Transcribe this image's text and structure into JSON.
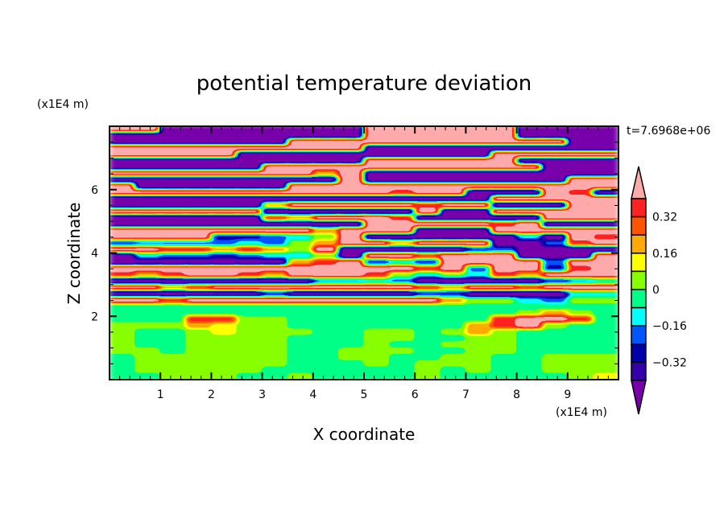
{
  "chart_data": {
    "type": "heatmap",
    "title": "potential temperature deviation",
    "xlabel": "X coordinate",
    "ylabel": "Z coordinate",
    "x_unit_label": "(x1E4 m)",
    "y_unit_label": "(x1E4 m)",
    "time_label": "t=7.6968e+06",
    "xlim": [
      0,
      10
    ],
    "ylim": [
      0,
      8
    ],
    "x_ticks": [
      1,
      2,
      3,
      4,
      5,
      6,
      7,
      8,
      9
    ],
    "y_ticks": [
      2,
      4,
      6
    ],
    "grid": false,
    "colorbar": {
      "levels": [
        -0.4,
        -0.32,
        -0.24,
        -0.16,
        -0.08,
        0,
        0.08,
        0.16,
        0.24,
        0.32,
        0.4
      ],
      "tick_labels": [
        {
          "value": 0.32,
          "label": "0.32"
        },
        {
          "value": 0.16,
          "label": "0.16"
        },
        {
          "value": 0,
          "label": "0"
        },
        {
          "value": -0.16,
          "label": "−0.16"
        },
        {
          "value": -0.32,
          "label": "−0.32"
        }
      ],
      "colors": [
        "#7700aa",
        "#3300aa",
        "#0000aa",
        "#0055ff",
        "#00ffff",
        "#00ff88",
        "#88ff00",
        "#ffff00",
        "#ffaa00",
        "#ff5500",
        "#ff2222",
        "#ffaaaa"
      ],
      "extend": "both",
      "placement": "right"
    },
    "grid_dx": 0.5,
    "grid_dz": 0.2,
    "values_top_to_bottom": [
      [
        0.5,
        0.5,
        -0.5,
        -0.5,
        -0.5,
        -0.5,
        -0.5,
        -0.5,
        -0.5,
        -0.5,
        0.5,
        0.5,
        0.5,
        0.5,
        0.5,
        0.5,
        -0.5,
        -0.5,
        -0.5,
        -0.5
      ],
      [
        -0.5,
        -0.5,
        -0.5,
        -0.5,
        -0.5,
        -0.5,
        -0.5,
        -0.5,
        -0.5,
        -0.5,
        0.5,
        0.5,
        0.5,
        0.5,
        0.5,
        0.5,
        -0.5,
        -0.5,
        -0.5,
        -0.5
      ],
      [
        -0.5,
        -0.5,
        -0.5,
        -0.5,
        -0.5,
        -0.5,
        -0.5,
        0.5,
        0.5,
        0.5,
        0.5,
        0.5,
        0.5,
        0.5,
        0.5,
        0.5,
        0.5,
        0.5,
        -0.5,
        -0.5
      ],
      [
        0.5,
        0.5,
        0.5,
        0.5,
        0.5,
        0.5,
        0.5,
        0.5,
        0.5,
        0.5,
        -0.5,
        -0.5,
        -0.5,
        -0.5,
        -0.5,
        -0.5,
        -0.5,
        -0.5,
        -0.5,
        -0.5
      ],
      [
        0.5,
        0.5,
        0.5,
        0.5,
        0.5,
        -0.5,
        -0.5,
        -0.5,
        -0.5,
        -0.5,
        -0.5,
        -0.5,
        -0.5,
        -0.5,
        -0.5,
        0.5,
        0.5,
        0.5,
        0.5,
        0.5
      ],
      [
        -0.5,
        -0.5,
        -0.5,
        -0.5,
        -0.5,
        -0.5,
        -0.5,
        -0.5,
        -0.5,
        -0.5,
        0.5,
        0.5,
        0.5,
        0.5,
        0.5,
        0.5,
        -0.5,
        -0.5,
        -0.5,
        -0.5
      ],
      [
        -0.5,
        -0.5,
        -0.5,
        -0.5,
        -0.5,
        -0.5,
        0.5,
        0.5,
        0.5,
        0.5,
        0.5,
        0.5,
        0.5,
        0.5,
        0.5,
        0.5,
        0.5,
        -0.5,
        -0.5,
        -0.5
      ],
      [
        0.5,
        0.5,
        0.5,
        0.5,
        0.5,
        0.5,
        0.5,
        0.5,
        0.2,
        0.5,
        -0.5,
        -0.5,
        -0.5,
        -0.5,
        -0.5,
        -0.5,
        -0.5,
        -0.5,
        -0.5,
        -0.5
      ],
      [
        -0.5,
        -0.5,
        -0.5,
        -0.5,
        -0.5,
        -0.5,
        -0.5,
        -0.5,
        -0.5,
        0.5,
        -0.5,
        -0.5,
        -0.5,
        -0.5,
        -0.5,
        -0.5,
        -0.5,
        -0.5,
        0.5,
        0.5
      ],
      [
        0.5,
        -0.5,
        -0.5,
        -0.5,
        -0.5,
        -0.5,
        -0.5,
        0.5,
        0.5,
        0.5,
        0.5,
        0.5,
        0.5,
        0.5,
        0.5,
        0.5,
        0.5,
        0.5,
        0.5,
        0.5
      ],
      [
        0.5,
        0.5,
        0.5,
        0.5,
        0.5,
        0.5,
        0.5,
        0.5,
        0.5,
        0.5,
        0.5,
        0.36,
        0.5,
        0.5,
        -0.5,
        -0.5,
        -0.5,
        0.5,
        0.36,
        -0.5
      ],
      [
        -0.5,
        -0.5,
        -0.5,
        -0.5,
        -0.5,
        -0.5,
        -0.5,
        -0.5,
        -0.5,
        -0.5,
        -0.5,
        -0.5,
        -0.5,
        -0.5,
        -0.5,
        0.5,
        0.5,
        0.5,
        0.5,
        0.5
      ],
      [
        -0.5,
        -0.5,
        -0.5,
        -0.5,
        -0.5,
        -0.5,
        0.2,
        0.5,
        0.5,
        0.5,
        0.5,
        0.5,
        0.36,
        0.5,
        0.5,
        -0.5,
        -0.5,
        -0.5,
        0.5,
        0.5
      ],
      [
        0.5,
        0.5,
        0.5,
        0.5,
        0.5,
        0.5,
        -0.5,
        -0.5,
        -0.5,
        -0.5,
        -0.5,
        -0.5,
        0.5,
        -0.5,
        -0.5,
        0.5,
        0.5,
        0.5,
        0.5,
        0.5
      ],
      [
        -0.5,
        -0.5,
        -0.5,
        -0.5,
        -0.5,
        -0.5,
        0.36,
        0.2,
        0.5,
        0.5,
        0.5,
        0.36,
        -0.5,
        -0.5,
        -0.5,
        -0.5,
        -0.5,
        0.5,
        0.5,
        0.5
      ],
      [
        -0.5,
        -0.5,
        -0.5,
        -0.5,
        -0.5,
        -0.5,
        -0.5,
        -0.5,
        -0.5,
        -0.5,
        0.5,
        0.5,
        0.5,
        0.5,
        0.5,
        0.36,
        0.5,
        -0.5,
        -0.5,
        -0.5
      ],
      [
        0.5,
        0.5,
        0.5,
        0.5,
        0.5,
        0.5,
        0.5,
        0.5,
        0.2,
        0.5,
        0.5,
        0.5,
        -0.5,
        -0.5,
        -0.5,
        0.5,
        0.5,
        0.5,
        0.5,
        0.5
      ],
      [
        0.5,
        0.5,
        0.5,
        0.5,
        -0.28,
        -0.28,
        -0.2,
        -0.12,
        0.04,
        0.5,
        -0.5,
        -0.5,
        -0.5,
        -0.5,
        -0.5,
        -0.5,
        -0.12,
        -0.5,
        0.5,
        0.36
      ],
      [
        -0.28,
        -0.2,
        -0.2,
        -0.2,
        -0.2,
        -0.12,
        -0.2,
        0.04,
        0.2,
        0.5,
        0.5,
        0.2,
        0.5,
        0.5,
        0.5,
        -0.5,
        -0.5,
        -0.2,
        0.36,
        0.5
      ],
      [
        0.5,
        0.5,
        0.36,
        0.36,
        0.2,
        0.36,
        0.2,
        0.04,
        0.5,
        -0.5,
        -0.5,
        -0.5,
        -0.5,
        -0.5,
        -0.28,
        -0.2,
        -0.5,
        -0.5,
        -0.5,
        -0.5
      ],
      [
        -0.5,
        -0.12,
        -0.2,
        -0.2,
        -0.28,
        -0.2,
        -0.12,
        -0.12,
        0.04,
        -0.5,
        0.5,
        0.5,
        0.36,
        0.5,
        0.5,
        0.5,
        -0.5,
        -0.5,
        -0.5,
        0.5
      ],
      [
        -0.5,
        -0.5,
        -0.5,
        -0.5,
        -0.5,
        -0.5,
        -0.5,
        0.2,
        0.36,
        0.5,
        -0.28,
        -0.12,
        -0.28,
        0.5,
        0.5,
        0.5,
        0.5,
        -0.2,
        0.5,
        0.5
      ],
      [
        0.5,
        0.5,
        0.5,
        0.5,
        0.5,
        0.5,
        0.5,
        0.5,
        0.5,
        0.5,
        0.5,
        0.5,
        0.36,
        0.5,
        -0.2,
        0.5,
        0.5,
        -0.28,
        0.36,
        0.5
      ],
      [
        0.36,
        0.2,
        0.36,
        0.5,
        0.5,
        0.36,
        0.2,
        0.5,
        0.5,
        0.5,
        0.36,
        0.04,
        -0.12,
        0.04,
        -0.12,
        0.36,
        0.2,
        0.5,
        0.5,
        0.5
      ],
      [
        -0.5,
        -0.5,
        -0.5,
        -0.5,
        -0.5,
        -0.5,
        -0.5,
        -0.5,
        -0.2,
        -0.2,
        -0.12,
        -0.2,
        -0.5,
        -0.5,
        -0.5,
        -0.5,
        -0.5,
        -0.28,
        -0.2,
        -0.12
      ],
      [
        0.5,
        0.5,
        0.2,
        0.36,
        0.5,
        0.5,
        0.5,
        0.5,
        0.5,
        0.5,
        0.5,
        0.5,
        0.36,
        0.2,
        0.5,
        0.5,
        0.36,
        0.5,
        0.5,
        0.5
      ],
      [
        -0.5,
        -0.5,
        -0.5,
        -0.5,
        -0.5,
        -0.5,
        -0.28,
        -0.5,
        -0.5,
        -0.5,
        -0.5,
        -0.5,
        -0.28,
        -0.28,
        -0.5,
        -0.5,
        -0.5,
        -0.5,
        -0.12,
        -0.12
      ],
      [
        0.5,
        0.5,
        0.36,
        0.5,
        0.5,
        0.5,
        0.5,
        0.5,
        0.5,
        0.5,
        0.5,
        0.5,
        0.5,
        0.2,
        0.04,
        0.04,
        -0.12,
        -0.2,
        0.04,
        0.04
      ],
      [
        -0.04,
        -0.04,
        -0.04,
        -0.04,
        -0.04,
        -0.04,
        -0.04,
        -0.04,
        -0.04,
        -0.04,
        -0.04,
        -0.04,
        -0.04,
        -0.04,
        -0.04,
        -0.04,
        -0.04,
        -0.04,
        -0.04,
        -0.04
      ],
      [
        -0.04,
        -0.04,
        -0.04,
        -0.04,
        -0.04,
        -0.04,
        -0.04,
        -0.04,
        -0.04,
        -0.04,
        -0.04,
        -0.04,
        -0.04,
        -0.04,
        -0.04,
        -0.04,
        0.04,
        0.2,
        0.04,
        -0.04
      ],
      [
        -0.04,
        -0.04,
        -0.04,
        0.36,
        0.36,
        0.04,
        0.04,
        -0.04,
        -0.04,
        -0.04,
        -0.04,
        -0.04,
        -0.04,
        -0.04,
        -0.04,
        0.36,
        0.5,
        0.5,
        0.36,
        -0.04
      ],
      [
        0.04,
        0.04,
        0.04,
        0.2,
        0.12,
        0.04,
        0.04,
        -0.04,
        -0.04,
        -0.04,
        -0.04,
        -0.04,
        -0.04,
        -0.04,
        0.2,
        0.36,
        0.5,
        0.04,
        -0.04,
        -0.04
      ],
      [
        0.04,
        -0.04,
        -0.04,
        0.04,
        0.12,
        0.04,
        0.04,
        0.04,
        -0.04,
        -0.04,
        0.04,
        0.04,
        -0.04,
        0.04,
        0.2,
        0.04,
        -0.04,
        -0.04,
        -0.04,
        -0.04
      ],
      [
        0.04,
        -0.04,
        -0.04,
        0.04,
        0.04,
        0.04,
        0.04,
        -0.04,
        -0.04,
        -0.04,
        0.04,
        0.04,
        -0.04,
        -0.04,
        0.04,
        0.04,
        -0.04,
        -0.04,
        -0.04,
        -0.04
      ],
      [
        0.04,
        -0.04,
        -0.04,
        0.04,
        0.04,
        0.04,
        0.04,
        -0.04,
        -0.04,
        -0.04,
        0.04,
        -0.04,
        -0.04,
        0.04,
        0.04,
        0.04,
        -0.04,
        -0.04,
        -0.04,
        -0.04
      ],
      [
        0.04,
        0.04,
        -0.04,
        0.04,
        0.04,
        0.04,
        0.04,
        -0.04,
        -0.04,
        0.04,
        0.04,
        0.04,
        -0.04,
        -0.04,
        0.04,
        0.04,
        -0.04,
        -0.04,
        -0.04,
        -0.04
      ],
      [
        -0.04,
        0.04,
        0.04,
        0.04,
        0.04,
        0.04,
        0.04,
        -0.04,
        -0.04,
        0.04,
        0.04,
        -0.04,
        -0.04,
        0.04,
        0.04,
        -0.04,
        -0.04,
        0.04,
        0.04,
        0.04
      ],
      [
        -0.04,
        0.04,
        0.04,
        0.04,
        0.04,
        0.04,
        0.04,
        -0.04,
        -0.04,
        -0.04,
        0.04,
        -0.04,
        0.04,
        0.04,
        0.04,
        -0.04,
        -0.04,
        0.04,
        0.04,
        0.04
      ],
      [
        -0.04,
        0.04,
        0.04,
        0.04,
        0.04,
        0.04,
        -0.04,
        -0.04,
        -0.04,
        -0.04,
        -0.04,
        -0.04,
        0.04,
        -0.04,
        0.04,
        -0.04,
        -0.04,
        0.04,
        0.04,
        0.04
      ],
      [
        -0.04,
        -0.04,
        0.04,
        0.04,
        0.04,
        -0.04,
        -0.04,
        0.04,
        -0.04,
        -0.04,
        -0.04,
        -0.04,
        0.04,
        -0.04,
        -0.04,
        -0.04,
        -0.04,
        -0.04,
        0.04,
        0.12
      ]
    ]
  }
}
